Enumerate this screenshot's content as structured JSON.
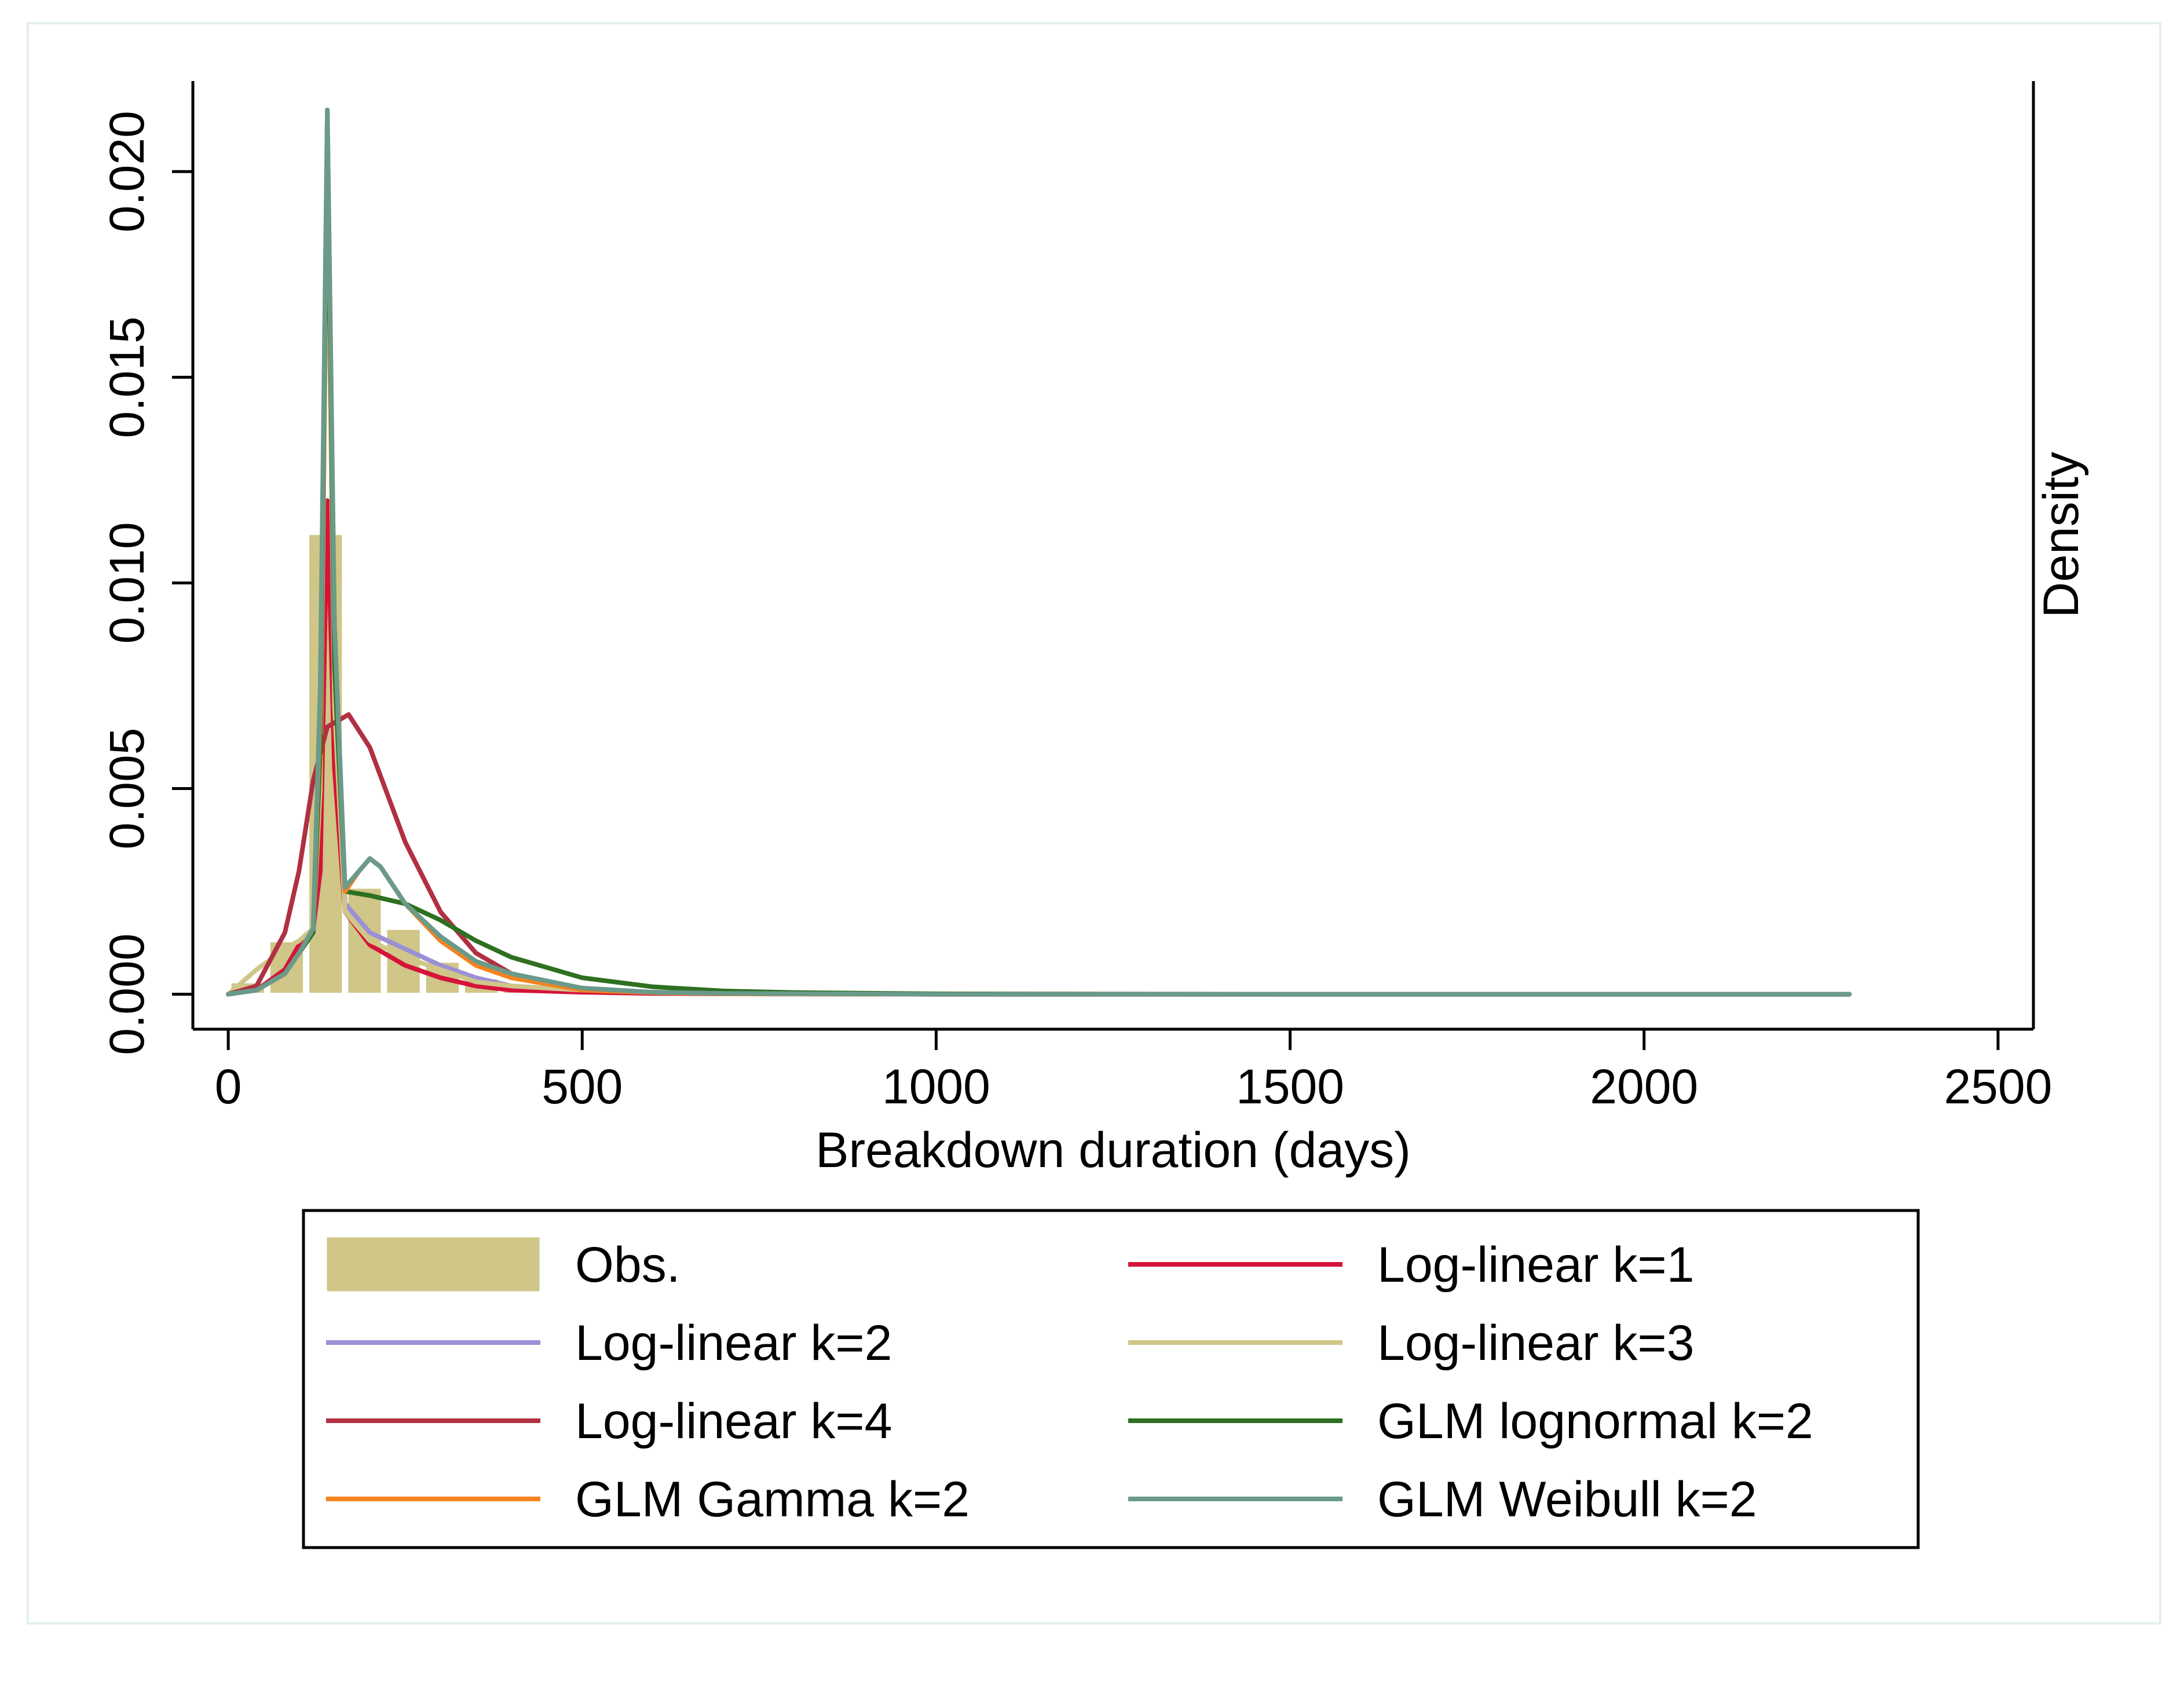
{
  "chart_data": {
    "type": "histogram+line",
    "title": "",
    "xlabel": "Breakdown duration (days)",
    "ylabel": "Density",
    "xlim": [
      -50,
      2550
    ],
    "ylim": [
      -0.00085,
      0.0222
    ],
    "x_ticks": [
      0,
      500,
      1000,
      1500,
      2000,
      2500
    ],
    "x_tick_labels": [
      "0",
      "500",
      "1000",
      "1500",
      "2000",
      "2500"
    ],
    "y_ticks": [
      0.0,
      0.005,
      0.01,
      0.015,
      0.02
    ],
    "y_tick_labels": [
      "0.000",
      "0.005",
      "0.010",
      "0.015",
      "0.020"
    ],
    "grid": false,
    "legend_position": "bottom",
    "legend_title": "",
    "histogram": {
      "name": "Obs.",
      "color": "#cfc688",
      "bins": [
        {
          "x0": 0,
          "x1": 55,
          "density": 0.0003
        },
        {
          "x0": 55,
          "x1": 110,
          "density": 0.0013
        },
        {
          "x0": 110,
          "x1": 165,
          "density": 0.0112
        },
        {
          "x0": 165,
          "x1": 220,
          "density": 0.0026
        },
        {
          "x0": 220,
          "x1": 275,
          "density": 0.0016
        },
        {
          "x0": 275,
          "x1": 330,
          "density": 0.0008
        },
        {
          "x0": 330,
          "x1": 385,
          "density": 0.0004
        },
        {
          "x0": 385,
          "x1": 440,
          "density": 0.0002
        },
        {
          "x0": 440,
          "x1": 495,
          "density": 0.0001
        }
      ]
    },
    "series": [
      {
        "name": "Log-linear k=1",
        "color": "#d6133a",
        "x": [
          0,
          40,
          80,
          100,
          120,
          130,
          140,
          150,
          165,
          200,
          250,
          300,
          350,
          400,
          500,
          600,
          700,
          1000,
          1500,
          2000,
          2290
        ],
        "y": [
          0,
          0.0001,
          0.0006,
          0.0012,
          0.0016,
          0.003,
          0.012,
          0.0055,
          0.002,
          0.0012,
          0.0007,
          0.0004,
          0.0002,
          0.0001,
          5e-05,
          2e-05,
          1e-05,
          0,
          0,
          0,
          0
        ]
      },
      {
        "name": "Log-linear k=2",
        "color": "#9b8fd6",
        "x": [
          0,
          40,
          80,
          100,
          120,
          130,
          140,
          150,
          165,
          200,
          250,
          300,
          350,
          400,
          500,
          600,
          700,
          1000,
          1500,
          2000,
          2290
        ],
        "y": [
          0,
          0.0001,
          0.0005,
          0.001,
          0.0015,
          0.006,
          0.0215,
          0.008,
          0.0022,
          0.0015,
          0.0011,
          0.0007,
          0.0004,
          0.0002,
          0.0001,
          5e-05,
          2e-05,
          0,
          0,
          0,
          0
        ]
      },
      {
        "name": "Log-linear k=3",
        "color": "#cfc688",
        "x": [
          0,
          40,
          80,
          100,
          120,
          130,
          140,
          150,
          165,
          200,
          250,
          300,
          350,
          400,
          500,
          600,
          700,
          1000,
          1500,
          2000,
          2290
        ],
        "y": [
          0,
          0.0006,
          0.0011,
          0.0013,
          0.0016,
          0.005,
          0.02,
          0.007,
          0.002,
          0.0013,
          0.0009,
          0.0006,
          0.0003,
          0.0002,
          0.0001,
          4e-05,
          2e-05,
          0,
          0,
          0,
          0
        ]
      },
      {
        "name": "Log-linear k=4",
        "color": "#b03042",
        "x": [
          0,
          40,
          80,
          100,
          120,
          140,
          170,
          200,
          250,
          300,
          350,
          400,
          500,
          600,
          700,
          1000,
          1500,
          2000,
          2290
        ],
        "y": [
          0,
          0.0002,
          0.0015,
          0.003,
          0.0052,
          0.0065,
          0.0068,
          0.006,
          0.0037,
          0.002,
          0.001,
          0.0005,
          0.0001,
          3e-05,
          1e-05,
          0,
          0,
          0,
          0
        ]
      },
      {
        "name": "GLM lognormal k=2",
        "color": "#2e7021",
        "x": [
          0,
          40,
          80,
          100,
          120,
          130,
          140,
          150,
          165,
          200,
          250,
          300,
          350,
          400,
          500,
          600,
          700,
          800,
          1000,
          1500,
          2000,
          2290
        ],
        "y": [
          0,
          0.0001,
          0.0005,
          0.001,
          0.0015,
          0.006,
          0.021,
          0.008,
          0.0025,
          0.0024,
          0.0022,
          0.0018,
          0.0013,
          0.0009,
          0.0004,
          0.00018,
          8e-05,
          4e-05,
          1e-05,
          0,
          0,
          0
        ]
      },
      {
        "name": "GLM Gamma k=2",
        "color": "#f4821f",
        "x": [
          0,
          40,
          80,
          100,
          120,
          130,
          140,
          150,
          165,
          185,
          200,
          215,
          250,
          300,
          350,
          400,
          500,
          600,
          700,
          1000,
          1500,
          2000,
          2290
        ],
        "y": [
          0,
          0.0001,
          0.0005,
          0.001,
          0.0016,
          0.007,
          0.0214,
          0.009,
          0.0025,
          0.003,
          0.0033,
          0.0031,
          0.0022,
          0.0013,
          0.0007,
          0.0004,
          0.0001,
          4e-05,
          1e-05,
          0,
          0,
          0,
          0
        ]
      },
      {
        "name": "GLM Weibull k=2",
        "color": "#6a9a8a",
        "x": [
          0,
          40,
          80,
          100,
          120,
          130,
          140,
          150,
          165,
          185,
          200,
          215,
          250,
          300,
          350,
          400,
          500,
          600,
          700,
          1000,
          1500,
          2000,
          2290
        ],
        "y": [
          0,
          0.0001,
          0.0005,
          0.001,
          0.0016,
          0.0075,
          0.0215,
          0.009,
          0.0026,
          0.003,
          0.0033,
          0.0031,
          0.0022,
          0.0014,
          0.0008,
          0.0005,
          0.00015,
          5e-05,
          2e-05,
          0,
          0,
          0,
          0
        ]
      }
    ],
    "legend_items": [
      {
        "label": "Obs.",
        "kind": "bar",
        "color": "#cfc688"
      },
      {
        "label": "Log-linear k=1",
        "kind": "line",
        "color": "#d6133a"
      },
      {
        "label": "Log-linear k=2",
        "kind": "line",
        "color": "#9b8fd6"
      },
      {
        "label": "Log-linear k=3",
        "kind": "line",
        "color": "#cfc688"
      },
      {
        "label": "Log-linear k=4",
        "kind": "line",
        "color": "#b03042"
      },
      {
        "label": "GLM lognormal k=2",
        "kind": "line",
        "color": "#2e7021"
      },
      {
        "label": "GLM Gamma k=2",
        "kind": "line",
        "color": "#f4821f"
      },
      {
        "label": "GLM Weibull k=2",
        "kind": "line",
        "color": "#6a9a8a"
      }
    ]
  }
}
